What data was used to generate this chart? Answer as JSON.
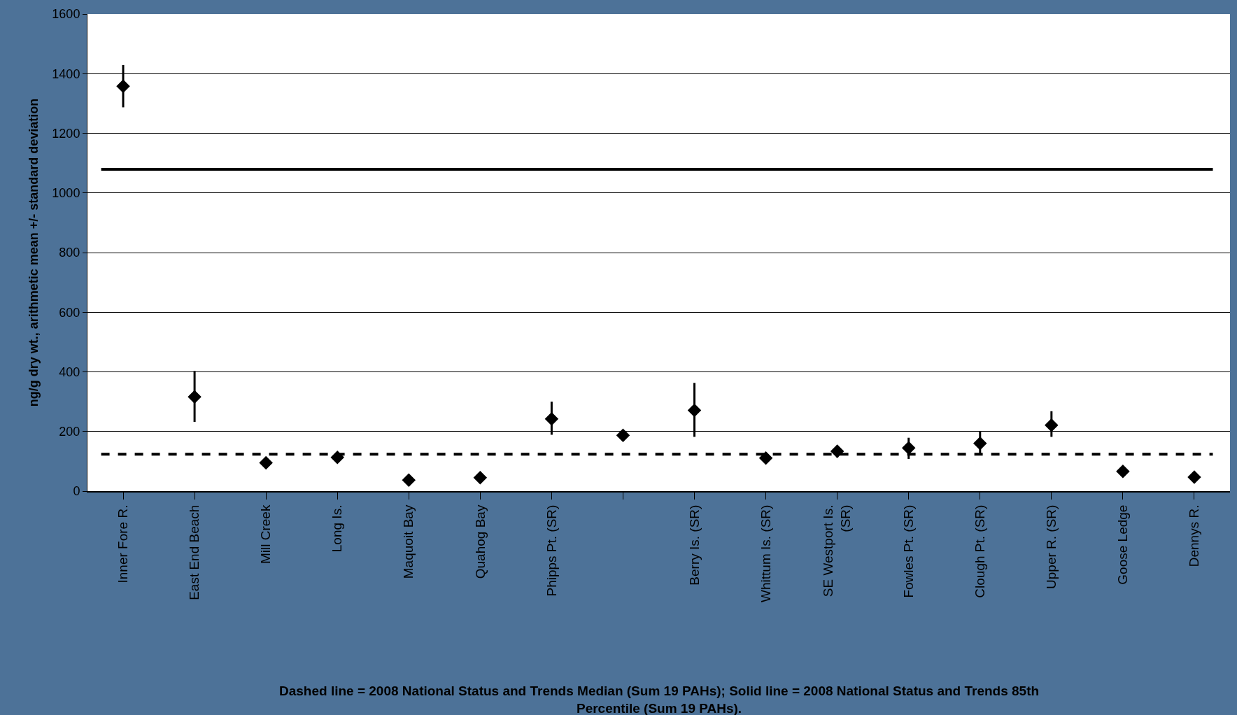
{
  "chart_data": {
    "type": "scatter",
    "ylabel": "ng/g dry wt., arithmetic mean +/- standard deviation",
    "categories": [
      "Inner Fore R.",
      "East End Beach",
      "Mill Creek",
      "Long Is.",
      "Maquoit Bay",
      "Quahog Bay",
      "Phipps Pt. (SR)",
      null,
      "Berry Is. (SR)",
      "Whittum Is. (SR)",
      "SE Westport Is. (SR)",
      "Fowles Pt. (SR)",
      "Clough Pt. (SR)",
      "Upper R. (SR)",
      "Goose Ledge",
      "Dennys R."
    ],
    "values": [
      1358,
      316,
      95,
      113,
      37,
      45,
      242,
      187,
      271,
      111,
      134,
      145,
      160,
      221,
      66,
      47
    ],
    "errors": [
      [
        1287,
        1429
      ],
      [
        232,
        403
      ],
      null,
      null,
      null,
      null,
      [
        189,
        300
      ],
      [
        174,
        205
      ],
      [
        182,
        363
      ],
      null,
      [
        113,
        153
      ],
      [
        108,
        179
      ],
      [
        124,
        200
      ],
      [
        182,
        268
      ],
      null,
      null
    ],
    "color": "#000000",
    "marker": "diamond",
    "ylim": [
      0,
      1600
    ],
    "yticks": [
      0,
      200,
      400,
      600,
      800,
      1000,
      1200,
      1400,
      1600
    ],
    "grid": "y",
    "ref_lines": [
      {
        "axis": "y",
        "value": 124,
        "line_style": "dashed",
        "color": "#000000"
      },
      {
        "axis": "y",
        "value": 1079,
        "line_style": "solid",
        "color": "#000000"
      }
    ],
    "annotations": [
      "Dashed line = 2008 National Status and Trends Median (Sum 19 PAHs); Solid line = 2008 National Status and Trends 85th Percentile (Sum 19 PAHs)."
    ]
  }
}
